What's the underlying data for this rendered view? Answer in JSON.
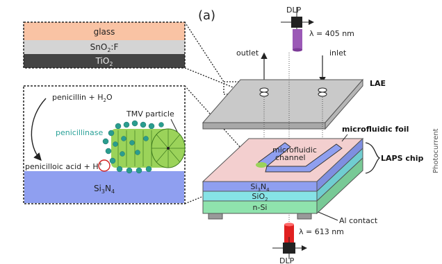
{
  "panel_label": "(a)",
  "layer_stack": {
    "layers": [
      {
        "label": "glass",
        "color": "#f9c3a4"
      },
      {
        "label": "SnO",
        "sub": "2",
        "suffix": ":F",
        "color": "#d4d4d4"
      },
      {
        "label": "TiO",
        "sub": "2",
        "suffix": "",
        "color": "#444444"
      }
    ]
  },
  "reaction": {
    "reactants": "penicillin + H",
    "reactants_sub": "2",
    "reactants_tail": "O",
    "enzyme": "penicillinase",
    "particle": "TMV particle",
    "products": "penicilloic acid + H",
    "proton_sup": "+",
    "substrate": "Si",
    "substrate_sub1": "3",
    "substrate_mid": "N",
    "substrate_sub2": "4"
  },
  "device": {
    "dlp_top": "DLP",
    "wavelength_top": "λ = 405 nm",
    "outlet": "outlet",
    "inlet": "inlet",
    "lae": "LAE",
    "foil": "microfluidic foil",
    "channel_line1": "microfluidic",
    "channel_line2": "channel",
    "laps": "LAPS chip",
    "layer_si3n4": "Si",
    "layer_sio2": "SiO",
    "layer_nsi": "n-Si",
    "al_contact": "Al contact",
    "wavelength_bottom": "λ = 613 nm",
    "dlp_bottom": "DLP",
    "side_text": "Photocurrent"
  },
  "colors": {
    "enzyme_text": "#2aa198",
    "lae_plate": "#c9c9c9",
    "foil": "#f3cfcf",
    "laps_blue": "#8f9ff0",
    "sio2": "#86e3e6",
    "nsi": "#8fe3ad",
    "laser_top": "#9b59b6",
    "laser_bottom": "#e02020"
  }
}
